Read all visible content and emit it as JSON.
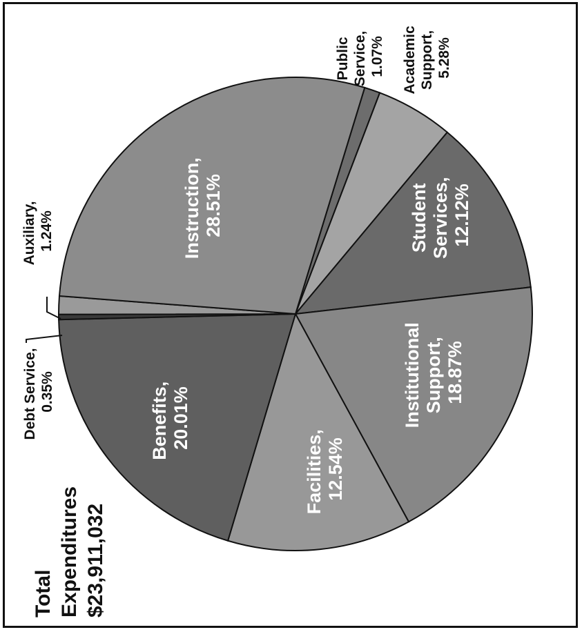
{
  "chart_data": {
    "type": "pie",
    "title_lines": [
      "Total",
      "Expenditures",
      "$23,911,032"
    ],
    "slices": [
      {
        "label": "Instruction,",
        "value_text": "28.51%",
        "value": 28.51,
        "color": "#8c8c8c"
      },
      {
        "label": "Public Service,",
        "label_lines": [
          "Public",
          "Service,"
        ],
        "value_text": "1.07%",
        "value": 1.07,
        "color": "#6d6d6d"
      },
      {
        "label": "Academic Support,",
        "label_lines": [
          "Academic",
          "Support,"
        ],
        "value_text": "5.28%",
        "value": 5.28,
        "color": "#a4a4a4"
      },
      {
        "label": "Student Services,",
        "label_lines": [
          "Student",
          "Services,"
        ],
        "value_text": "12.12%",
        "value": 12.12,
        "color": "#6a6a6a"
      },
      {
        "label": "Institutional Support,",
        "label_lines": [
          "Institutional",
          "Support,"
        ],
        "value_text": "18.87%",
        "value": 18.87,
        "color": "#878787"
      },
      {
        "label": "Facilities,",
        "value_text": "12.54%",
        "value": 12.54,
        "color": "#989898"
      },
      {
        "label": "Benefits,",
        "value_text": "20.01%",
        "value": 20.01,
        "color": "#5f5f5f"
      },
      {
        "label": "Debt Service,",
        "value_text": "0.35%",
        "value": 0.35,
        "color": "#3a3a3a"
      },
      {
        "label": "Auxiliary,",
        "value_text": "1.24%",
        "value": 1.24,
        "color": "#9a9a9a"
      }
    ]
  }
}
